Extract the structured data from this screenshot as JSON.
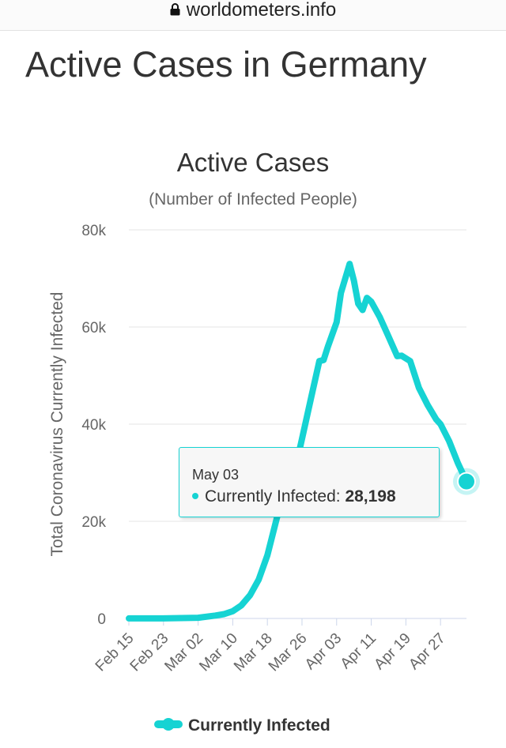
{
  "browser": {
    "url": "worldometers.info"
  },
  "page": {
    "title": "Active Cases in Germany"
  },
  "colors": {
    "series": "#16d3d3",
    "grid": "#e6e6e6",
    "axis": "#ccd6eb"
  },
  "tooltip": {
    "date": "May 03",
    "label": "Currently Infected:",
    "value": "28,198"
  },
  "chart_data": {
    "type": "line",
    "title": "Active Cases",
    "subtitle": "(Number of Infected People)",
    "ylabel": "Total Coronavirus Currently Infected",
    "xlabel": "",
    "ylim": [
      0,
      80000
    ],
    "y_ticks": [
      0,
      20000,
      40000,
      60000,
      80000
    ],
    "y_tick_labels": [
      "0",
      "20k",
      "40k",
      "60k",
      "80k"
    ],
    "x_tick_labels": [
      "Feb 15",
      "Feb 23",
      "Mar 02",
      "Mar 10",
      "Mar 18",
      "Mar 26",
      "Apr 03",
      "Apr 11",
      "Apr 19",
      "Apr 27"
    ],
    "legend": "bottom-center",
    "grid": true,
    "series": [
      {
        "name": "Currently Infected",
        "x": [
          "Feb 15",
          "Feb 23",
          "Mar 02",
          "Mar 06",
          "Mar 08",
          "Mar 10",
          "Mar 12",
          "Mar 14",
          "Mar 16",
          "Mar 18",
          "Mar 20",
          "Mar 22",
          "Mar 24",
          "Mar 26",
          "Mar 28",
          "Mar 30",
          "Mar 31",
          "Apr 01",
          "Apr 03",
          "Apr 04",
          "Apr 05",
          "Apr 06",
          "Apr 07",
          "Apr 08",
          "Apr 09",
          "Apr 10",
          "Apr 11",
          "Apr 13",
          "Apr 15",
          "Apr 17",
          "Apr 18",
          "Apr 20",
          "Apr 22",
          "Apr 24",
          "Apr 26",
          "Apr 27",
          "Apr 29",
          "May 01",
          "May 03"
        ],
        "values": [
          16,
          13,
          140,
          600,
          900,
          1500,
          2700,
          4800,
          8000,
          13000,
          20000,
          27000,
          29000,
          37000,
          45000,
          53000,
          53200,
          56000,
          61000,
          67000,
          70000,
          73000,
          69500,
          64800,
          63500,
          66000,
          65200,
          62000,
          58000,
          54000,
          54100,
          53000,
          47500,
          44000,
          41000,
          40000,
          36500,
          32000,
          28198
        ]
      }
    ]
  }
}
